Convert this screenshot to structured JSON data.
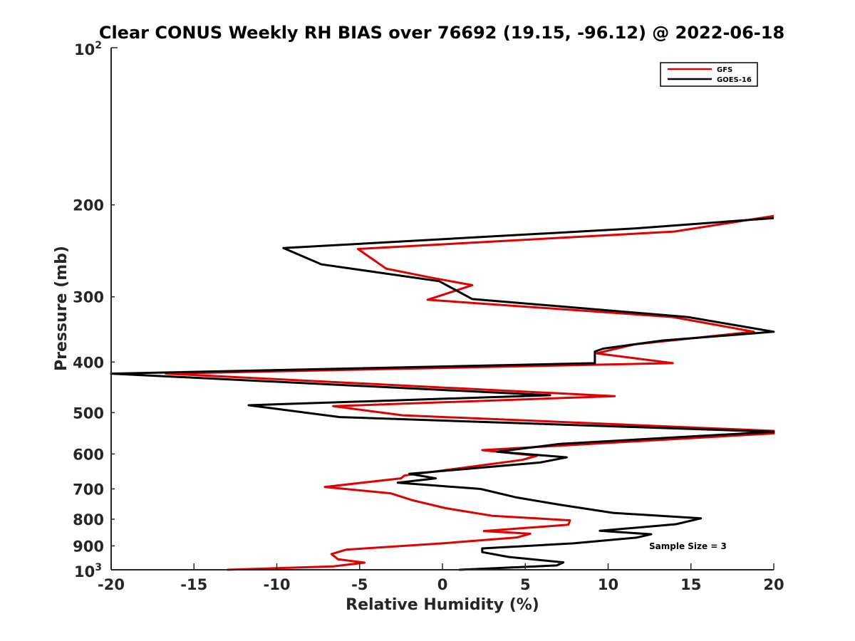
{
  "chart_data": {
    "type": "line",
    "title": "Clear CONUS Weekly RH BIAS over 76692 (19.15, -96.12) @ 2022-06-18",
    "xlabel": "Relative Humidity (%)",
    "ylabel": "Pressure (mb)",
    "xlim": [
      -20,
      20
    ],
    "ylim": [
      100,
      1000
    ],
    "yscale": "log",
    "yreversed": true,
    "grid": false,
    "legend_location": "top-right",
    "x_ticks": [
      -20,
      -15,
      -10,
      -5,
      0,
      5,
      10,
      15,
      20
    ],
    "x_tick_labels": [
      "-20",
      "-15",
      "-10",
      "-5",
      "0",
      "5",
      "10",
      "15",
      "20"
    ],
    "y_ticks": [
      200,
      300,
      400,
      500,
      600,
      700,
      800,
      900
    ],
    "y_tick_labels": [
      "200",
      "300",
      "400",
      "500",
      "600",
      "700",
      "800",
      "900"
    ],
    "y_top_label": {
      "base": "10",
      "exp": "2"
    },
    "y_bottom_label": {
      "base": "10",
      "exp": "3"
    },
    "annotation": "Sample Size = 3",
    "series": [
      {
        "name": "GFS",
        "color": "#e00000",
        "points": [
          [
            20.0,
            210
          ],
          [
            14.0,
            225
          ],
          [
            -5.1,
            243
          ],
          [
            -3.4,
            265
          ],
          [
            -0.6,
            276
          ],
          [
            1.8,
            285
          ],
          [
            -0.9,
            304
          ],
          [
            13.9,
            328
          ],
          [
            18.8,
            350
          ],
          [
            11.6,
            370
          ],
          [
            9.3,
            385
          ],
          [
            13.9,
            402
          ],
          [
            -16.7,
            421
          ],
          [
            10.4,
            465
          ],
          [
            -6.6,
            486
          ],
          [
            -2.4,
            506
          ],
          [
            20.0,
            542
          ],
          [
            20.0,
            548
          ],
          [
            2.4,
            590
          ],
          [
            5.7,
            605
          ],
          [
            4.8,
            616
          ],
          [
            -2.3,
            660
          ],
          [
            -2.5,
            668
          ],
          [
            -7.1,
            694
          ],
          [
            -3.1,
            714
          ],
          [
            -1.8,
            736
          ],
          [
            0.2,
            762
          ],
          [
            3.0,
            788
          ],
          [
            7.7,
            804
          ],
          [
            7.6,
            820
          ],
          [
            2.5,
            843
          ],
          [
            5.3,
            853
          ],
          [
            4.5,
            867
          ],
          [
            0.0,
            890
          ],
          [
            -5.8,
            915
          ],
          [
            -6.7,
            933
          ],
          [
            -6.3,
            955
          ],
          [
            -4.7,
            969
          ],
          [
            -6.6,
            985
          ],
          [
            -13.0,
            1000
          ]
        ]
      },
      {
        "name": "GOES-16",
        "color": "#000000",
        "points": [
          [
            20.0,
            212
          ],
          [
            11.5,
            222
          ],
          [
            -9.6,
            242
          ],
          [
            -7.3,
            260
          ],
          [
            -0.2,
            280
          ],
          [
            1.8,
            303
          ],
          [
            14.8,
            328
          ],
          [
            20.0,
            350
          ],
          [
            13.2,
            364
          ],
          [
            9.7,
            377
          ],
          [
            9.2,
            382
          ],
          [
            9.2,
            402
          ],
          [
            -20.0,
            421
          ],
          [
            6.5,
            463
          ],
          [
            -11.7,
            484
          ],
          [
            -6.2,
            510
          ],
          [
            20.0,
            544
          ],
          [
            7.1,
            574
          ],
          [
            3.3,
            594
          ],
          [
            7.5,
            609
          ],
          [
            5.9,
            623
          ],
          [
            -2.0,
            655
          ],
          [
            -0.4,
            668
          ],
          [
            -2.7,
            681
          ],
          [
            2.3,
            700
          ],
          [
            4.4,
            726
          ],
          [
            7.0,
            750
          ],
          [
            10.3,
            778
          ],
          [
            15.6,
            797
          ],
          [
            14.1,
            818
          ],
          [
            9.5,
            842
          ],
          [
            12.6,
            855
          ],
          [
            11.7,
            868
          ],
          [
            7.9,
            890
          ],
          [
            2.4,
            910
          ],
          [
            2.4,
            925
          ],
          [
            4.0,
            945
          ],
          [
            7.3,
            968
          ],
          [
            6.9,
            981
          ],
          [
            1.0,
            1000
          ]
        ]
      }
    ]
  }
}
